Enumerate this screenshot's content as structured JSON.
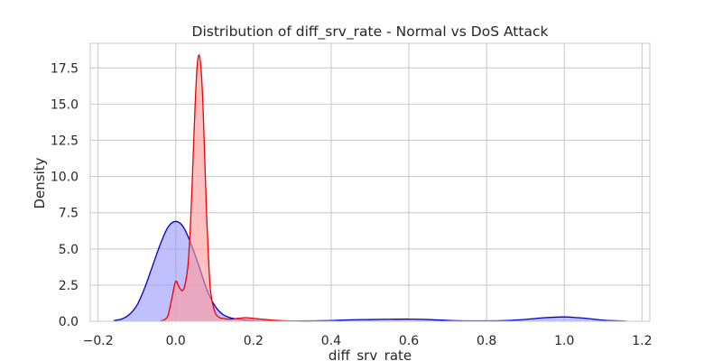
{
  "chart_data": {
    "type": "area",
    "title": "Distribution of diff_srv_rate - Normal vs DoS Attack",
    "xlabel": "diff_srv_rate",
    "ylabel": "Density",
    "xlim": [
      -0.22,
      1.22
    ],
    "ylim": [
      0,
      19.2
    ],
    "x_ticks": [
      -0.2,
      0.0,
      0.2,
      0.4,
      0.6,
      0.8,
      1.0,
      1.2
    ],
    "x_tick_labels": [
      "−0.2",
      "0.0",
      "0.2",
      "0.4",
      "0.6",
      "0.8",
      "1.0",
      "1.2"
    ],
    "y_ticks": [
      0,
      2.5,
      5,
      7.5,
      10,
      12.5,
      15,
      17.5
    ],
    "y_tick_labels": [
      "0.0",
      "2.5",
      "5.0",
      "7.5",
      "10.0",
      "12.5",
      "15.0",
      "17.5"
    ],
    "grid": true,
    "legend": "none",
    "series": [
      {
        "color": "#0000cc",
        "fill": "#9999ff",
        "x": [
          -0.16,
          -0.14,
          -0.12,
          -0.1,
          -0.08,
          -0.06,
          -0.04,
          -0.02,
          0.0,
          0.02,
          0.04,
          0.06,
          0.08,
          0.1,
          0.12,
          0.14,
          0.16,
          0.18,
          0.2,
          0.25,
          0.3,
          0.35,
          0.4,
          0.45,
          0.5,
          0.55,
          0.6,
          0.65,
          0.7,
          0.75,
          0.8,
          0.85,
          0.9,
          0.95,
          1.0,
          1.05,
          1.1,
          1.16
        ],
        "y": [
          0.05,
          0.15,
          0.45,
          1.1,
          2.3,
          3.8,
          5.3,
          6.5,
          6.9,
          6.5,
          5.3,
          3.8,
          2.2,
          1.1,
          0.5,
          0.25,
          0.15,
          0.08,
          0.05,
          0.03,
          0.02,
          0.03,
          0.05,
          0.1,
          0.12,
          0.14,
          0.15,
          0.12,
          0.06,
          0.03,
          0.03,
          0.05,
          0.13,
          0.25,
          0.3,
          0.22,
          0.08,
          0.01
        ]
      },
      {
        "color": "#ee0000",
        "fill": "#ff9999",
        "x": [
          -0.04,
          -0.03,
          -0.02,
          -0.01,
          0.0,
          0.01,
          0.02,
          0.03,
          0.035,
          0.04,
          0.045,
          0.05,
          0.055,
          0.06,
          0.065,
          0.07,
          0.075,
          0.08,
          0.085,
          0.09,
          0.1,
          0.11,
          0.12,
          0.14,
          0.16,
          0.18,
          0.2,
          0.25,
          0.3,
          0.35
        ],
        "y": [
          0.02,
          0.1,
          0.4,
          1.6,
          2.75,
          2.3,
          2.2,
          3.5,
          5.2,
          8.0,
          11.5,
          15.0,
          17.6,
          18.4,
          17.5,
          15.0,
          11.0,
          7.0,
          4.0,
          2.0,
          0.7,
          0.3,
          0.2,
          0.15,
          0.2,
          0.25,
          0.2,
          0.08,
          0.02,
          0.0
        ]
      }
    ]
  }
}
